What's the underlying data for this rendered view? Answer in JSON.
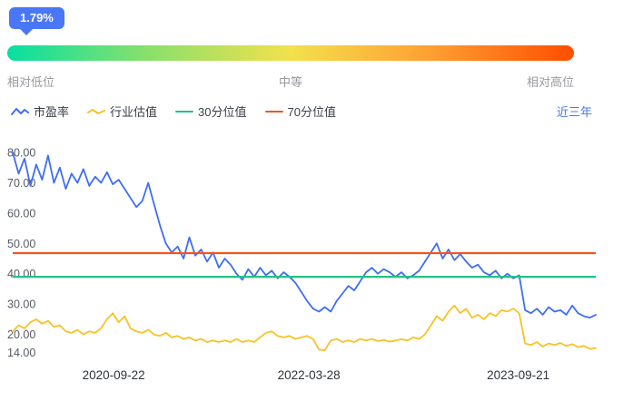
{
  "theme": {
    "accent_blue": "#4a77f5"
  },
  "badge": {
    "value": "1.79%"
  },
  "gauge": {
    "low_label": "相对低位",
    "mid_label": "中等",
    "high_label": "相对高位",
    "gradient": [
      "#07dfa2",
      "#8ae06b",
      "#f2e14c",
      "#ff9e33",
      "#ff4e00"
    ]
  },
  "legend": {
    "items": [
      {
        "label": "市盈率",
        "color": "#3d6ef5"
      },
      {
        "label": "行业估值",
        "color": "#f7c325"
      },
      {
        "label": "30分位值",
        "color": "#22c286"
      },
      {
        "label": "70分位值",
        "color": "#f0561d"
      }
    ],
    "range_label": "近三年"
  },
  "chart_data": {
    "type": "line",
    "ylim": [
      13,
      83
    ],
    "grid": false,
    "legend_position": "top",
    "y_ticks": [
      {
        "value": 80,
        "label": "80.00"
      },
      {
        "value": 70,
        "label": "70.00"
      },
      {
        "value": 60,
        "label": "60.00"
      },
      {
        "value": 50,
        "label": "50.00"
      },
      {
        "value": 40,
        "label": "40.00"
      },
      {
        "value": 30,
        "label": "30.00"
      },
      {
        "value": 20,
        "label": "20.00"
      },
      {
        "value": 14,
        "label": "14.00"
      }
    ],
    "x_ticks": [
      {
        "label": "2020-09-22",
        "pos": 0.173
      },
      {
        "label": "2022-03-28",
        "pos": 0.508
      },
      {
        "label": "2023-09-21",
        "pos": 0.867
      }
    ],
    "series": [
      {
        "id": "pe",
        "name": "市盈率",
        "color": "#3d6ef5",
        "values": [
          80,
          73,
          78,
          69,
          76,
          71,
          79,
          70,
          75,
          68,
          73,
          70,
          74.5,
          69,
          72,
          70,
          73.5,
          69.5,
          71,
          68,
          65,
          62,
          64,
          70,
          63,
          56,
          50,
          47,
          49,
          45,
          52,
          46,
          48,
          44,
          47,
          42,
          45,
          43,
          40,
          38,
          41.5,
          39,
          42,
          39.5,
          41,
          38.5,
          40.5,
          39,
          37,
          34,
          31,
          28.5,
          27.5,
          29,
          27.5,
          31,
          33.5,
          36,
          34.5,
          37.5,
          40.5,
          42,
          40,
          41.5,
          40.5,
          39,
          40.5,
          38.5,
          39.5,
          41,
          44,
          47,
          50,
          45,
          48,
          44.5,
          46.5,
          44,
          42,
          43,
          40.5,
          39.5,
          41,
          38.5,
          40,
          38.5,
          39.5,
          28,
          27,
          28.5,
          26.5,
          29,
          27.5,
          28,
          26.5,
          29.5,
          27,
          26,
          25.5,
          26.5
        ]
      },
      {
        "id": "industry",
        "name": "行业估值",
        "color": "#f7c325",
        "values": [
          21,
          23,
          22,
          24,
          25,
          23.5,
          24.5,
          22.5,
          23,
          21,
          20.5,
          21.5,
          20,
          21,
          20.5,
          22,
          25,
          27,
          24,
          26,
          22,
          21,
          20.5,
          21.5,
          20,
          19.5,
          20.5,
          19,
          19.5,
          18.5,
          19,
          18,
          18.5,
          17.5,
          18,
          17.5,
          18,
          17.5,
          18.5,
          17.5,
          18,
          17.5,
          19,
          20.5,
          21,
          19.5,
          19,
          19.5,
          18.5,
          19,
          19.5,
          18.5,
          15,
          14.8,
          18,
          18.5,
          17.5,
          18,
          17.5,
          18.5,
          18,
          18.5,
          17.8,
          18.2,
          17.6,
          18,
          18.4,
          18,
          19,
          18.5,
          20,
          23,
          26,
          24.5,
          27.5,
          29.5,
          27,
          28.5,
          25.5,
          26.5,
          25,
          27,
          26,
          28,
          27.5,
          28.5,
          27,
          17,
          16.5,
          17.5,
          16,
          17,
          16.5,
          17.2,
          16.2,
          16.8,
          15.8,
          16.2,
          15.2,
          15.5
        ]
      },
      {
        "id": "p30",
        "name": "30分位值",
        "color": "#22c286",
        "constant": 39
      },
      {
        "id": "p70",
        "name": "70分位值",
        "color": "#f0561d",
        "constant": 46.8
      }
    ]
  }
}
